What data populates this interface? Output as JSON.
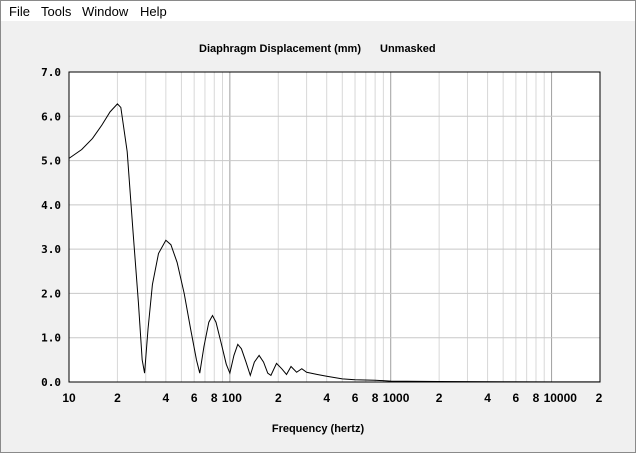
{
  "menu": {
    "items": [
      "File",
      "Tools",
      "Window",
      "Help"
    ]
  },
  "chart_data": {
    "type": "line",
    "title": "Diaphragm Displacement (mm)",
    "subtitle": "Unmasked",
    "xlabel": "Frequency (hertz)",
    "ylabel": "",
    "x_scale": "log",
    "xlim": [
      10,
      20000
    ],
    "ylim": [
      0,
      7
    ],
    "grid": true,
    "y_ticks": [
      "0.0",
      "1.0",
      "2.0",
      "3.0",
      "4.0",
      "5.0",
      "6.0",
      "7.0"
    ],
    "x_ticks": [
      {
        "value": 10,
        "label": "10"
      },
      {
        "value": 20,
        "label": "2"
      },
      {
        "value": 40,
        "label": "4"
      },
      {
        "value": 60,
        "label": "6"
      },
      {
        "value": 80,
        "label": "8"
      },
      {
        "value": 100,
        "label": "100"
      },
      {
        "value": 200,
        "label": "2"
      },
      {
        "value": 400,
        "label": "4"
      },
      {
        "value": 600,
        "label": "6"
      },
      {
        "value": 800,
        "label": "8"
      },
      {
        "value": 1000,
        "label": "1000"
      },
      {
        "value": 2000,
        "label": "2"
      },
      {
        "value": 4000,
        "label": "4"
      },
      {
        "value": 6000,
        "label": "6"
      },
      {
        "value": 8000,
        "label": "8"
      },
      {
        "value": 10000,
        "label": "10000"
      },
      {
        "value": 20000,
        "label": "2"
      }
    ],
    "series": [
      {
        "values": [
          [
            10,
            5.05
          ],
          [
            12,
            5.25
          ],
          [
            14,
            5.5
          ],
          [
            16,
            5.8
          ],
          [
            18,
            6.1
          ],
          [
            20,
            6.28
          ],
          [
            21,
            6.2
          ],
          [
            23,
            5.2
          ],
          [
            25,
            3.4
          ],
          [
            27,
            1.8
          ],
          [
            28.5,
            0.5
          ],
          [
            29.5,
            0.2
          ],
          [
            31,
            1.2
          ],
          [
            33,
            2.2
          ],
          [
            36,
            2.9
          ],
          [
            40,
            3.2
          ],
          [
            43,
            3.1
          ],
          [
            47,
            2.7
          ],
          [
            52,
            2.0
          ],
          [
            57,
            1.2
          ],
          [
            62,
            0.5
          ],
          [
            65,
            0.2
          ],
          [
            69,
            0.8
          ],
          [
            74,
            1.35
          ],
          [
            78,
            1.5
          ],
          [
            82,
            1.35
          ],
          [
            88,
            0.9
          ],
          [
            95,
            0.4
          ],
          [
            100,
            0.2
          ],
          [
            106,
            0.6
          ],
          [
            112,
            0.85
          ],
          [
            118,
            0.75
          ],
          [
            126,
            0.45
          ],
          [
            134,
            0.15
          ],
          [
            142,
            0.45
          ],
          [
            152,
            0.6
          ],
          [
            162,
            0.45
          ],
          [
            172,
            0.2
          ],
          [
            180,
            0.15
          ],
          [
            195,
            0.42
          ],
          [
            210,
            0.3
          ],
          [
            225,
            0.17
          ],
          [
            240,
            0.35
          ],
          [
            260,
            0.22
          ],
          [
            280,
            0.3
          ],
          [
            300,
            0.22
          ],
          [
            350,
            0.17
          ],
          [
            400,
            0.13
          ],
          [
            500,
            0.07
          ],
          [
            600,
            0.05
          ],
          [
            800,
            0.04
          ],
          [
            1000,
            0.02
          ],
          [
            2000,
            0.01
          ],
          [
            5000,
            0.005
          ],
          [
            10000,
            0.003
          ],
          [
            20000,
            0.002
          ]
        ]
      }
    ]
  }
}
